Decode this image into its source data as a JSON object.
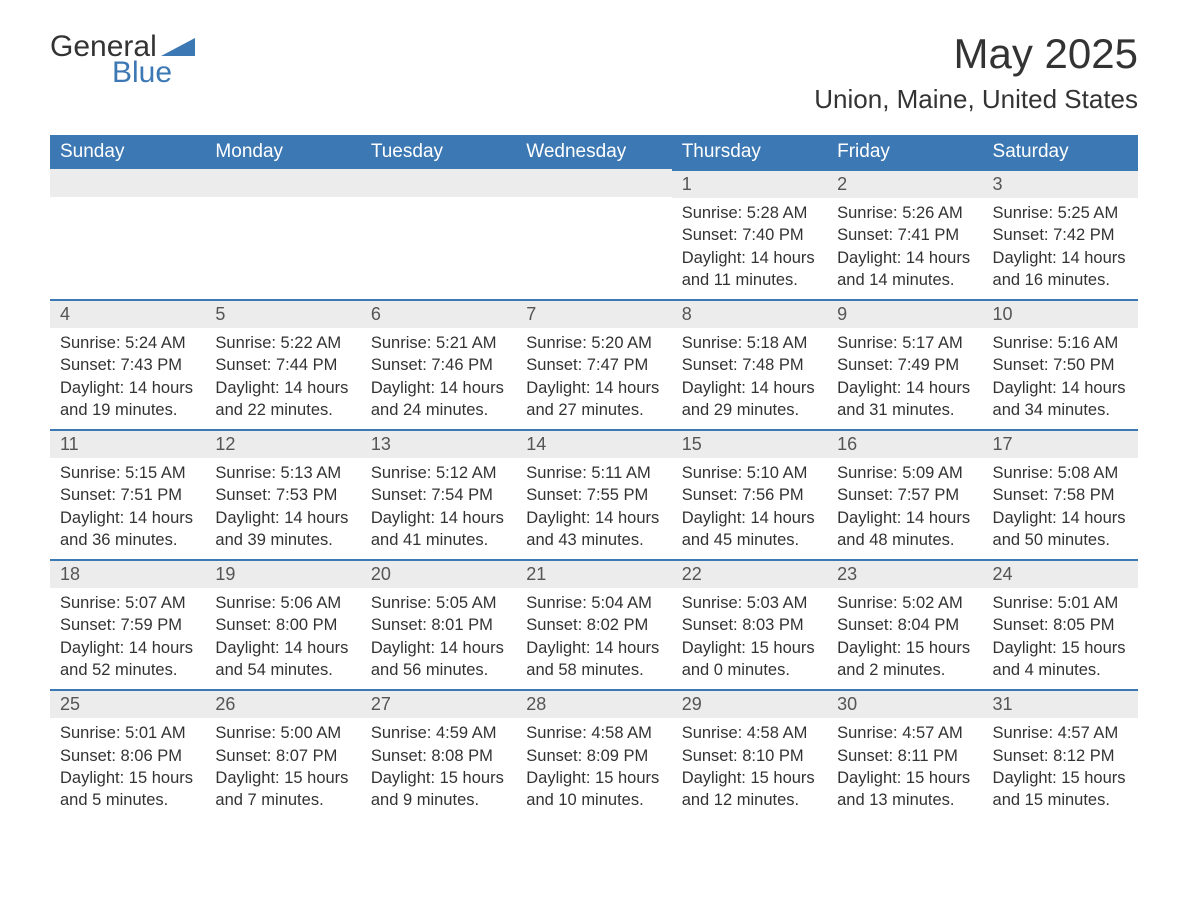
{
  "logo": {
    "general": "General",
    "blue": "Blue"
  },
  "title": "May 2025",
  "location": "Union, Maine, United States",
  "colors": {
    "headerBg": "#3c78b4",
    "headerText": "#ffffff",
    "dayBarBg": "#ececec",
    "dayBarBorder": "#3c78b4",
    "bodyText": "#333333",
    "pageBg": "#ffffff"
  },
  "weekdays": [
    "Sunday",
    "Monday",
    "Tuesday",
    "Wednesday",
    "Thursday",
    "Friday",
    "Saturday"
  ],
  "firstDayOffset": 4,
  "days": [
    {
      "n": 1,
      "sunrise": "5:28 AM",
      "sunset": "7:40 PM",
      "daylight": "14 hours and 11 minutes."
    },
    {
      "n": 2,
      "sunrise": "5:26 AM",
      "sunset": "7:41 PM",
      "daylight": "14 hours and 14 minutes."
    },
    {
      "n": 3,
      "sunrise": "5:25 AM",
      "sunset": "7:42 PM",
      "daylight": "14 hours and 16 minutes."
    },
    {
      "n": 4,
      "sunrise": "5:24 AM",
      "sunset": "7:43 PM",
      "daylight": "14 hours and 19 minutes."
    },
    {
      "n": 5,
      "sunrise": "5:22 AM",
      "sunset": "7:44 PM",
      "daylight": "14 hours and 22 minutes."
    },
    {
      "n": 6,
      "sunrise": "5:21 AM",
      "sunset": "7:46 PM",
      "daylight": "14 hours and 24 minutes."
    },
    {
      "n": 7,
      "sunrise": "5:20 AM",
      "sunset": "7:47 PM",
      "daylight": "14 hours and 27 minutes."
    },
    {
      "n": 8,
      "sunrise": "5:18 AM",
      "sunset": "7:48 PM",
      "daylight": "14 hours and 29 minutes."
    },
    {
      "n": 9,
      "sunrise": "5:17 AM",
      "sunset": "7:49 PM",
      "daylight": "14 hours and 31 minutes."
    },
    {
      "n": 10,
      "sunrise": "5:16 AM",
      "sunset": "7:50 PM",
      "daylight": "14 hours and 34 minutes."
    },
    {
      "n": 11,
      "sunrise": "5:15 AM",
      "sunset": "7:51 PM",
      "daylight": "14 hours and 36 minutes."
    },
    {
      "n": 12,
      "sunrise": "5:13 AM",
      "sunset": "7:53 PM",
      "daylight": "14 hours and 39 minutes."
    },
    {
      "n": 13,
      "sunrise": "5:12 AM",
      "sunset": "7:54 PM",
      "daylight": "14 hours and 41 minutes."
    },
    {
      "n": 14,
      "sunrise": "5:11 AM",
      "sunset": "7:55 PM",
      "daylight": "14 hours and 43 minutes."
    },
    {
      "n": 15,
      "sunrise": "5:10 AM",
      "sunset": "7:56 PM",
      "daylight": "14 hours and 45 minutes."
    },
    {
      "n": 16,
      "sunrise": "5:09 AM",
      "sunset": "7:57 PM",
      "daylight": "14 hours and 48 minutes."
    },
    {
      "n": 17,
      "sunrise": "5:08 AM",
      "sunset": "7:58 PM",
      "daylight": "14 hours and 50 minutes."
    },
    {
      "n": 18,
      "sunrise": "5:07 AM",
      "sunset": "7:59 PM",
      "daylight": "14 hours and 52 minutes."
    },
    {
      "n": 19,
      "sunrise": "5:06 AM",
      "sunset": "8:00 PM",
      "daylight": "14 hours and 54 minutes."
    },
    {
      "n": 20,
      "sunrise": "5:05 AM",
      "sunset": "8:01 PM",
      "daylight": "14 hours and 56 minutes."
    },
    {
      "n": 21,
      "sunrise": "5:04 AM",
      "sunset": "8:02 PM",
      "daylight": "14 hours and 58 minutes."
    },
    {
      "n": 22,
      "sunrise": "5:03 AM",
      "sunset": "8:03 PM",
      "daylight": "15 hours and 0 minutes."
    },
    {
      "n": 23,
      "sunrise": "5:02 AM",
      "sunset": "8:04 PM",
      "daylight": "15 hours and 2 minutes."
    },
    {
      "n": 24,
      "sunrise": "5:01 AM",
      "sunset": "8:05 PM",
      "daylight": "15 hours and 4 minutes."
    },
    {
      "n": 25,
      "sunrise": "5:01 AM",
      "sunset": "8:06 PM",
      "daylight": "15 hours and 5 minutes."
    },
    {
      "n": 26,
      "sunrise": "5:00 AM",
      "sunset": "8:07 PM",
      "daylight": "15 hours and 7 minutes."
    },
    {
      "n": 27,
      "sunrise": "4:59 AM",
      "sunset": "8:08 PM",
      "daylight": "15 hours and 9 minutes."
    },
    {
      "n": 28,
      "sunrise": "4:58 AM",
      "sunset": "8:09 PM",
      "daylight": "15 hours and 10 minutes."
    },
    {
      "n": 29,
      "sunrise": "4:58 AM",
      "sunset": "8:10 PM",
      "daylight": "15 hours and 12 minutes."
    },
    {
      "n": 30,
      "sunrise": "4:57 AM",
      "sunset": "8:11 PM",
      "daylight": "15 hours and 13 minutes."
    },
    {
      "n": 31,
      "sunrise": "4:57 AM",
      "sunset": "8:12 PM",
      "daylight": "15 hours and 15 minutes."
    }
  ],
  "labels": {
    "sunrise": "Sunrise:",
    "sunset": "Sunset:",
    "daylight": "Daylight:"
  }
}
